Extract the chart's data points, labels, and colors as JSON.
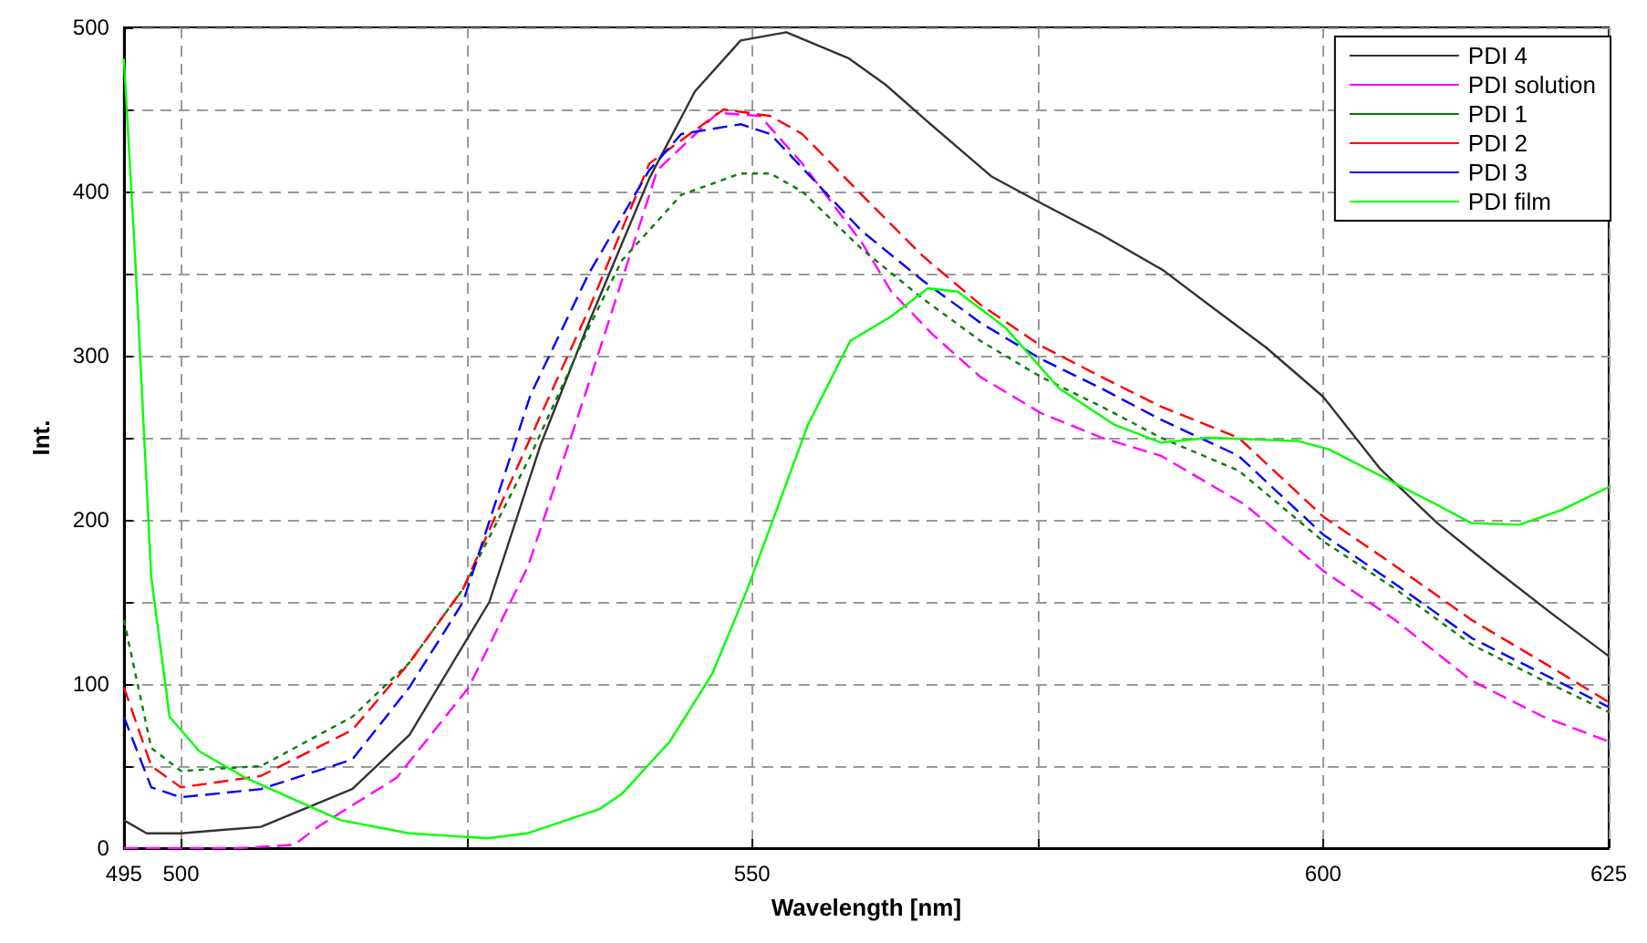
{
  "chart_data": {
    "type": "line",
    "xlabel": "Wavelength [nm]",
    "ylabel": "Int.",
    "xlim": [
      495,
      625
    ],
    "xticks": [
      495,
      500,
      {
        "value": 525,
        "label": null
      },
      550,
      {
        "value": 575,
        "label": null
      },
      600,
      625
    ],
    "ylim": [
      0,
      500
    ],
    "yticks": [
      0,
      {
        "value": 50,
        "label": null
      },
      100,
      {
        "value": 150,
        "label": null
      },
      200,
      {
        "value": 250,
        "label": null
      },
      300,
      {
        "value": 350,
        "label": null
      },
      400,
      {
        "value": 450,
        "label": null
      },
      500
    ],
    "grid": true,
    "legend": "top right",
    "marker": "none",
    "series": [
      {
        "name": "PDI 4",
        "color": "#333333",
        "line_style": "solid",
        "x": [
          495,
          497,
          500,
          507,
          515,
          520,
          527,
          531.5,
          535.7,
          541,
          545,
          549,
          553,
          558.5,
          561.7,
          565.3,
          571,
          575,
          580.5,
          586,
          590,
          595,
          600,
          605,
          610,
          615,
          620,
          625
        ],
        "values": [
          17,
          9,
          9,
          13,
          36,
          69,
          150,
          246,
          320,
          408,
          461,
          492,
          497,
          481,
          465,
          443,
          409,
          394,
          374,
          352,
          331,
          305,
          275,
          231,
          198,
          170,
          143,
          117
        ]
      },
      {
        "name": "PDI solution",
        "color": "#ff00ff",
        "line_style": "dashed",
        "x": [
          495,
          500,
          505,
          509.9,
          512,
          518.9,
          525.2,
          530.4,
          535.7,
          541.7,
          547,
          550.7,
          554.4,
          559.6,
          562.2,
          565.8,
          570,
          575.3,
          580.6,
          585.8,
          593.2,
          600,
          606.3,
          613,
          619.3,
          625
        ],
        "values": [
          0,
          0,
          0,
          2,
          13,
          43,
          98,
          172,
          283,
          413,
          448,
          446,
          417,
          369,
          339,
          313,
          287,
          265,
          250,
          239,
          209,
          169,
          139,
          102,
          80,
          65
        ]
      },
      {
        "name": "PDI 1",
        "color": "#008000",
        "line_style": "dotted",
        "x": [
          495,
          497.4,
          500,
          507,
          515,
          520,
          524.7,
          530.6,
          535.7,
          538.6,
          543.8,
          549,
          551.6,
          554.4,
          559.6,
          564.9,
          570,
          575.3,
          580.6,
          585.8,
          592.6,
          600,
          606.3,
          613,
          619.3,
          625
        ],
        "values": [
          139,
          61,
          47,
          50,
          80,
          113,
          158,
          239,
          317,
          358,
          398,
          411,
          411,
          400,
          365,
          335,
          309,
          287,
          269,
          250,
          230,
          187,
          158,
          124,
          102,
          83
        ]
      },
      {
        "name": "PDI 2",
        "color": "#ff0000",
        "line_style": "dashed",
        "x": [
          495,
          497.4,
          500,
          507,
          515,
          520,
          524.7,
          530.6,
          535.7,
          541,
          547.5,
          551.6,
          554.4,
          559.6,
          564.9,
          570,
          575.3,
          580.6,
          585.8,
          592.6,
          600,
          606.3,
          613,
          619.3,
          625
        ],
        "values": [
          98,
          50,
          37,
          44,
          72,
          113,
          158,
          250,
          328,
          417,
          450,
          446,
          435,
          398,
          361,
          331,
          306,
          287,
          269,
          250,
          202,
          172,
          139,
          113,
          89
        ]
      },
      {
        "name": "PDI 3",
        "color": "#0000ff",
        "line_style": "dashed",
        "x": [
          495,
          497.4,
          500,
          507,
          515,
          520,
          524.7,
          530.6,
          535.7,
          541,
          543.8,
          549,
          551.6,
          559.6,
          564.9,
          570,
          575.3,
          580.6,
          585.8,
          592.6,
          600,
          606.3,
          613,
          619.3,
          625
        ],
        "values": [
          80,
          37,
          31,
          36,
          54,
          98,
          150,
          276,
          350,
          413,
          435,
          441,
          435,
          376,
          346,
          320,
          298,
          280,
          261,
          239,
          191,
          161,
          128,
          106,
          86
        ]
      },
      {
        "name": "PDI film",
        "color": "#00ff00",
        "line_style": "solid",
        "x": [
          495,
          496,
          497.4,
          499,
          501.6,
          505.6,
          514,
          520,
          526.8,
          530.3,
          536.7,
          538.6,
          542.8,
          546.5,
          549.6,
          552.3,
          554.9,
          558.6,
          562.2,
          565.4,
          568,
          572.2,
          576.9,
          581.7,
          585.8,
          590,
          597.8,
          600.5,
          605.8,
          610,
          613,
          617.2,
          620.9,
          625
        ],
        "values": [
          481,
          358,
          165,
          80,
          59,
          43,
          17,
          9,
          6,
          9,
          24,
          33,
          65,
          106,
          158,
          209,
          258,
          309,
          324,
          341,
          339,
          317,
          280,
          258,
          247,
          250,
          248,
          243,
          224,
          209,
          198,
          197,
          206,
          220
        ]
      }
    ]
  }
}
